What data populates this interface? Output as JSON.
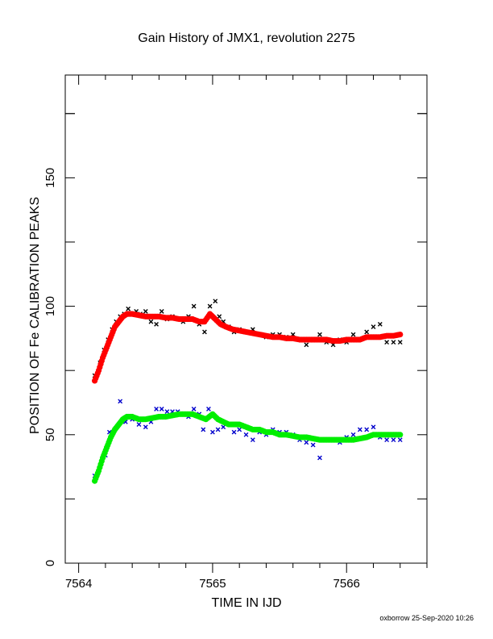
{
  "chart_data": {
    "type": "scatter",
    "title": "Gain History of JMX1, revolution 2275",
    "xlabel": "TIME IN IJD",
    "ylabel": "POSITION OF Fe CALIBRATION PEAKS",
    "xlim": [
      7563.9,
      7566.6
    ],
    "ylim": [
      0,
      190
    ],
    "xticks": [
      7564,
      7565,
      7566
    ],
    "yticks": [
      0,
      50,
      100,
      150
    ],
    "grid": false,
    "series": [
      {
        "color": "#000000",
        "marker": "x",
        "points": [
          [
            7564.12,
            73
          ],
          [
            7564.16,
            78
          ],
          [
            7564.19,
            83
          ],
          [
            7564.22,
            87
          ],
          [
            7564.25,
            91
          ],
          [
            7564.28,
            94
          ],
          [
            7564.31,
            96
          ],
          [
            7564.34,
            97
          ],
          [
            7564.37,
            99
          ],
          [
            7564.4,
            97
          ],
          [
            7564.43,
            98
          ],
          [
            7564.46,
            97
          ],
          [
            7564.5,
            98
          ],
          [
            7564.54,
            94
          ],
          [
            7564.58,
            93
          ],
          [
            7564.62,
            98
          ],
          [
            7564.66,
            95
          ],
          [
            7564.7,
            96
          ],
          [
            7564.74,
            95
          ],
          [
            7564.78,
            94
          ],
          [
            7564.82,
            96
          ],
          [
            7564.86,
            100
          ],
          [
            7564.9,
            93
          ],
          [
            7564.94,
            90
          ],
          [
            7564.98,
            100
          ],
          [
            7565.02,
            102
          ],
          [
            7565.05,
            96
          ],
          [
            7565.08,
            94
          ],
          [
            7565.12,
            92
          ],
          [
            7565.16,
            90
          ],
          [
            7565.2,
            91
          ],
          [
            7565.25,
            90
          ],
          [
            7565.3,
            91
          ],
          [
            7565.35,
            89
          ],
          [
            7565.4,
            88
          ],
          [
            7565.45,
            89
          ],
          [
            7565.5,
            89
          ],
          [
            7565.55,
            88
          ],
          [
            7565.6,
            89
          ],
          [
            7565.65,
            87
          ],
          [
            7565.7,
            85
          ],
          [
            7565.75,
            87
          ],
          [
            7565.8,
            89
          ],
          [
            7565.85,
            86
          ],
          [
            7565.9,
            85
          ],
          [
            7565.95,
            87
          ],
          [
            7566.0,
            86
          ],
          [
            7566.05,
            89
          ],
          [
            7566.1,
            87
          ],
          [
            7566.15,
            90
          ],
          [
            7566.2,
            92
          ],
          [
            7566.25,
            93
          ],
          [
            7566.3,
            86
          ],
          [
            7566.35,
            86
          ],
          [
            7566.4,
            86
          ]
        ]
      },
      {
        "color": "#ff0000",
        "marker": "dot",
        "points": [
          [
            7564.12,
            71
          ],
          [
            7564.15,
            75
          ],
          [
            7564.18,
            80
          ],
          [
            7564.21,
            84
          ],
          [
            7564.24,
            88
          ],
          [
            7564.27,
            92
          ],
          [
            7564.3,
            94
          ],
          [
            7564.33,
            96
          ],
          [
            7564.36,
            97
          ],
          [
            7564.4,
            97
          ],
          [
            7564.45,
            96.5
          ],
          [
            7564.5,
            96
          ],
          [
            7564.55,
            96
          ],
          [
            7564.6,
            96
          ],
          [
            7564.65,
            95.5
          ],
          [
            7564.7,
            95.5
          ],
          [
            7564.75,
            95
          ],
          [
            7564.8,
            95
          ],
          [
            7564.85,
            95
          ],
          [
            7564.9,
            94
          ],
          [
            7564.94,
            94
          ],
          [
            7564.98,
            97
          ],
          [
            7565.02,
            95
          ],
          [
            7565.06,
            93
          ],
          [
            7565.1,
            92
          ],
          [
            7565.15,
            91
          ],
          [
            7565.2,
            90.5
          ],
          [
            7565.25,
            90
          ],
          [
            7565.3,
            89.5
          ],
          [
            7565.35,
            89
          ],
          [
            7565.4,
            88.5
          ],
          [
            7565.45,
            88
          ],
          [
            7565.5,
            88
          ],
          [
            7565.55,
            87.5
          ],
          [
            7565.6,
            87.5
          ],
          [
            7565.65,
            87
          ],
          [
            7565.7,
            87
          ],
          [
            7565.75,
            87
          ],
          [
            7565.8,
            87
          ],
          [
            7565.85,
            87
          ],
          [
            7565.9,
            86.5
          ],
          [
            7565.95,
            86.5
          ],
          [
            7566.0,
            87
          ],
          [
            7566.05,
            87
          ],
          [
            7566.1,
            87
          ],
          [
            7566.15,
            88
          ],
          [
            7566.2,
            88
          ],
          [
            7566.25,
            88
          ],
          [
            7566.3,
            88.5
          ],
          [
            7566.35,
            88.5
          ],
          [
            7566.4,
            89
          ]
        ]
      },
      {
        "color": "#0000cc",
        "marker": "x",
        "points": [
          [
            7564.12,
            34
          ],
          [
            7564.16,
            38
          ],
          [
            7564.2,
            42
          ],
          [
            7564.23,
            51
          ],
          [
            7564.27,
            52
          ],
          [
            7564.31,
            63
          ],
          [
            7564.35,
            55
          ],
          [
            7564.4,
            56
          ],
          [
            7564.45,
            54
          ],
          [
            7564.5,
            53
          ],
          [
            7564.54,
            55
          ],
          [
            7564.58,
            60
          ],
          [
            7564.62,
            60
          ],
          [
            7564.66,
            59
          ],
          [
            7564.7,
            59
          ],
          [
            7564.74,
            59
          ],
          [
            7564.78,
            58
          ],
          [
            7564.82,
            57
          ],
          [
            7564.86,
            60
          ],
          [
            7564.9,
            58
          ],
          [
            7564.93,
            52
          ],
          [
            7564.97,
            60
          ],
          [
            7565.0,
            51
          ],
          [
            7565.04,
            52
          ],
          [
            7565.08,
            53
          ],
          [
            7565.12,
            54
          ],
          [
            7565.16,
            51
          ],
          [
            7565.2,
            52
          ],
          [
            7565.25,
            50
          ],
          [
            7565.3,
            48
          ],
          [
            7565.35,
            51
          ],
          [
            7565.4,
            50
          ],
          [
            7565.45,
            52
          ],
          [
            7565.5,
            51
          ],
          [
            7565.55,
            51
          ],
          [
            7565.6,
            50
          ],
          [
            7565.65,
            48
          ],
          [
            7565.7,
            47
          ],
          [
            7565.75,
            46
          ],
          [
            7565.8,
            41
          ],
          [
            7565.85,
            48
          ],
          [
            7565.9,
            48
          ],
          [
            7565.95,
            47
          ],
          [
            7566.0,
            49
          ],
          [
            7566.05,
            50
          ],
          [
            7566.1,
            52
          ],
          [
            7566.15,
            52
          ],
          [
            7566.2,
            53
          ],
          [
            7566.25,
            49
          ],
          [
            7566.3,
            48
          ],
          [
            7566.35,
            48
          ],
          [
            7566.4,
            48
          ]
        ]
      },
      {
        "color": "#00ee00",
        "marker": "dot",
        "points": [
          [
            7564.12,
            32
          ],
          [
            7564.15,
            36
          ],
          [
            7564.18,
            41
          ],
          [
            7564.21,
            45
          ],
          [
            7564.24,
            49
          ],
          [
            7564.27,
            52
          ],
          [
            7564.3,
            54
          ],
          [
            7564.33,
            56
          ],
          [
            7564.36,
            57
          ],
          [
            7564.4,
            57
          ],
          [
            7564.45,
            56
          ],
          [
            7564.5,
            56
          ],
          [
            7564.55,
            56.5
          ],
          [
            7564.6,
            57
          ],
          [
            7564.65,
            57
          ],
          [
            7564.7,
            57.5
          ],
          [
            7564.75,
            58
          ],
          [
            7564.8,
            58
          ],
          [
            7564.85,
            58
          ],
          [
            7564.9,
            57
          ],
          [
            7564.95,
            56
          ],
          [
            7565.0,
            58
          ],
          [
            7565.04,
            56
          ],
          [
            7565.08,
            55
          ],
          [
            7565.12,
            54
          ],
          [
            7565.16,
            54
          ],
          [
            7565.2,
            54
          ],
          [
            7565.25,
            53
          ],
          [
            7565.3,
            52
          ],
          [
            7565.35,
            52
          ],
          [
            7565.4,
            51
          ],
          [
            7565.45,
            51
          ],
          [
            7565.5,
            50
          ],
          [
            7565.55,
            50
          ],
          [
            7565.6,
            49.5
          ],
          [
            7565.65,
            49
          ],
          [
            7565.7,
            49
          ],
          [
            7565.75,
            48.5
          ],
          [
            7565.8,
            48
          ],
          [
            7565.85,
            48
          ],
          [
            7565.9,
            48
          ],
          [
            7565.95,
            48
          ],
          [
            7566.0,
            48
          ],
          [
            7566.05,
            48
          ],
          [
            7566.1,
            48.5
          ],
          [
            7566.15,
            49
          ],
          [
            7566.2,
            50
          ],
          [
            7566.25,
            50
          ],
          [
            7566.3,
            50
          ],
          [
            7566.35,
            50
          ],
          [
            7566.4,
            50
          ]
        ]
      }
    ]
  },
  "footer": "oxborrow 25-Sep-2020 10:26"
}
